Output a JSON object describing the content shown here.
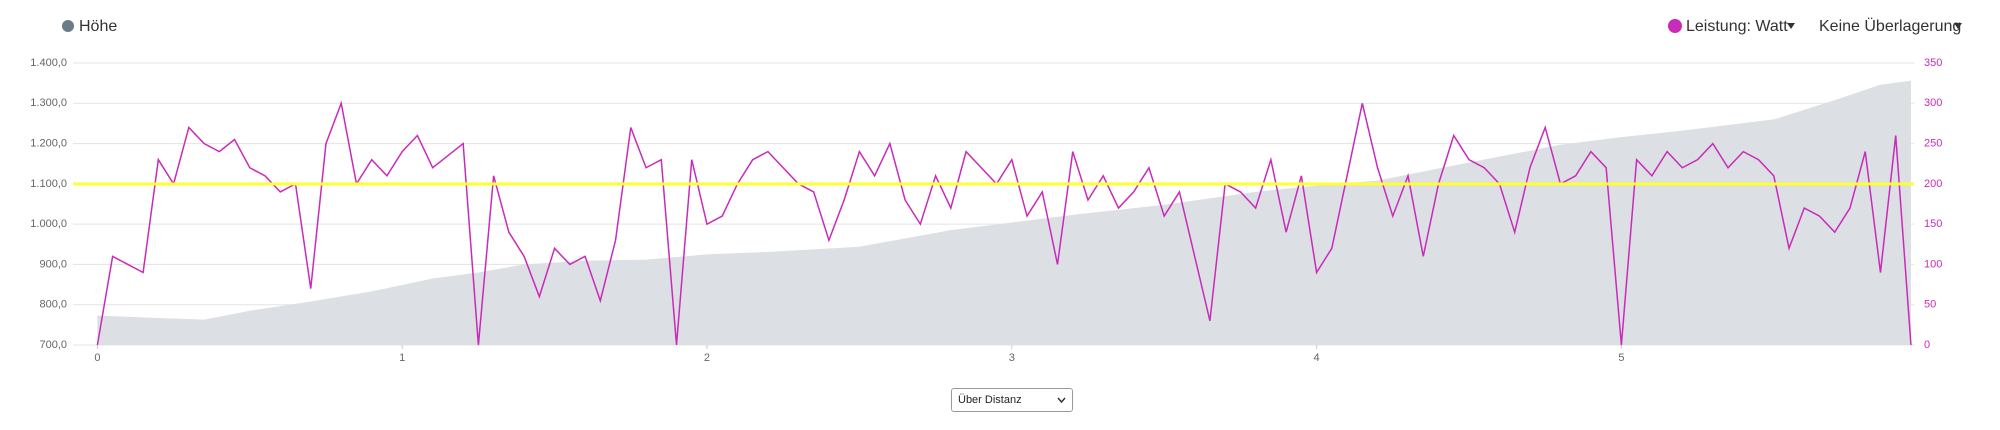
{
  "chart_data": {
    "type": "line",
    "ylim": [
      700,
      1400
    ],
    "yticks": [
      {
        "value": 700,
        "label": "700,0"
      },
      {
        "value": 800,
        "label": "800,0"
      },
      {
        "value": 900,
        "label": "900,0"
      },
      {
        "value": 1000,
        "label": "1.000,0"
      },
      {
        "value": 1100,
        "label": "1.100,0"
      },
      {
        "value": 1200,
        "label": "1.200,0"
      },
      {
        "value": 1300,
        "label": "1.300,0"
      },
      {
        "value": 1400,
        "label": "1.400,0"
      }
    ],
    "y2lim": [
      0,
      350
    ],
    "y2ticks": [
      0,
      50,
      100,
      150,
      200,
      250,
      300,
      350
    ],
    "xlim": [
      -0.08,
      5.96
    ],
    "xticks": [
      0,
      1,
      2,
      3,
      4,
      5
    ],
    "grid": true,
    "series": [
      {
        "name": "Höhe",
        "color": "#6b7b87",
        "fill": "#dcdfe3",
        "kind": "area",
        "x": [
          0,
          0.2,
          0.35,
          0.5,
          0.7,
          0.9,
          1.1,
          1.25,
          1.4,
          1.6,
          1.8,
          2.0,
          2.2,
          2.5,
          2.8,
          3.0,
          3.2,
          3.5,
          3.8,
          4.0,
          4.2,
          4.5,
          4.8,
          5.0,
          5.2,
          5.5,
          5.7,
          5.85,
          5.95
        ],
        "values": [
          773,
          767,
          763,
          785,
          808,
          833,
          865,
          880,
          900,
          909,
          912,
          925,
          931,
          944,
          985,
          1004,
          1023,
          1048,
          1080,
          1096,
          1108,
          1153,
          1197,
          1216,
          1232,
          1260,
          1308,
          1346,
          1356
        ]
      },
      {
        "name": "Leistung: Watt",
        "color": "#c92bb9",
        "kind": "line",
        "axis": "y2",
        "x": [
          0,
          0.05,
          0.1,
          0.15,
          0.2,
          0.25,
          0.3,
          0.35,
          0.4,
          0.45,
          0.5,
          0.55,
          0.6,
          0.65,
          0.7,
          0.75,
          0.8,
          0.85,
          0.9,
          0.95,
          1.0,
          1.05,
          1.1,
          1.15,
          1.2,
          1.25,
          1.3,
          1.35,
          1.4,
          1.45,
          1.5,
          1.55,
          1.6,
          1.65,
          1.7,
          1.75,
          1.8,
          1.85,
          1.9,
          1.95,
          2.0,
          2.05,
          2.1,
          2.15,
          2.2,
          2.25,
          2.3,
          2.35,
          2.4,
          2.45,
          2.5,
          2.55,
          2.6,
          2.65,
          2.7,
          2.75,
          2.8,
          2.85,
          2.9,
          2.95,
          3.0,
          3.05,
          3.1,
          3.15,
          3.2,
          3.25,
          3.3,
          3.35,
          3.4,
          3.45,
          3.5,
          3.55,
          3.6,
          3.65,
          3.7,
          3.75,
          3.8,
          3.85,
          3.9,
          3.95,
          4.0,
          4.05,
          4.1,
          4.15,
          4.2,
          4.25,
          4.3,
          4.35,
          4.4,
          4.45,
          4.5,
          4.55,
          4.6,
          4.65,
          4.7,
          4.75,
          4.8,
          4.85,
          4.9,
          4.95,
          5.0,
          5.05,
          5.1,
          5.15,
          5.2,
          5.25,
          5.3,
          5.35,
          5.4,
          5.45,
          5.5,
          5.55,
          5.6,
          5.65,
          5.7,
          5.75,
          5.8,
          5.85,
          5.9,
          5.95
        ],
        "values": [
          0,
          110,
          100,
          90,
          230,
          200,
          270,
          250,
          240,
          255,
          220,
          210,
          190,
          200,
          70,
          250,
          300,
          200,
          230,
          210,
          240,
          260,
          220,
          235,
          250,
          0,
          210,
          140,
          110,
          60,
          120,
          100,
          110,
          55,
          130,
          270,
          220,
          230,
          0,
          230,
          150,
          160,
          200,
          230,
          240,
          220,
          200,
          190,
          130,
          180,
          240,
          210,
          250,
          180,
          150,
          210,
          170,
          240,
          220,
          200,
          230,
          160,
          190,
          100,
          240,
          180,
          210,
          170,
          190,
          220,
          160,
          190,
          110,
          30,
          200,
          190,
          170,
          230,
          140,
          210,
          90,
          120,
          210,
          300,
          220,
          160,
          210,
          110,
          200,
          260,
          230,
          220,
          200,
          140,
          220,
          270,
          200,
          210,
          240,
          220,
          0,
          230,
          210,
          240,
          220,
          230,
          250,
          220,
          240,
          230,
          210,
          120,
          170,
          160,
          140,
          170,
          240,
          90,
          260,
          0
        ]
      }
    ],
    "reference_line": {
      "value": 200,
      "axis": "y2",
      "color": "#ffff33"
    }
  },
  "controls": {
    "overlay": "Keine Überlagerung",
    "x_mode": "Über Distanz"
  }
}
